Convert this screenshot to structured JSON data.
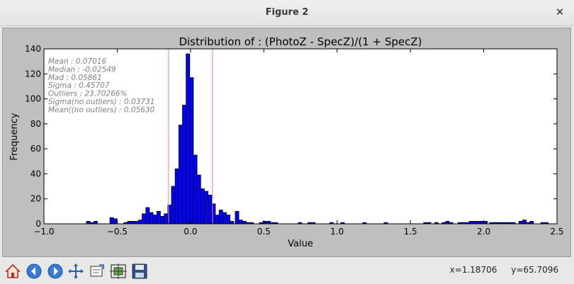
{
  "window": {
    "title": "Figure 2",
    "close_icon": "close-icon"
  },
  "toolbar": {
    "buttons": [
      {
        "name": "home-button",
        "icon": "home-icon"
      },
      {
        "name": "back-button",
        "icon": "back-arrow-icon"
      },
      {
        "name": "forward-button",
        "icon": "forward-arrow-icon"
      },
      {
        "name": "pan-button",
        "icon": "pan-move-icon"
      },
      {
        "name": "zoom-button",
        "icon": "zoom-rectangle-icon"
      },
      {
        "name": "subplots-button",
        "icon": "configure-subplots-icon"
      },
      {
        "name": "save-button",
        "icon": "save-disk-icon"
      }
    ]
  },
  "status": {
    "x": "x=1.18706",
    "y": "y=65.7096"
  },
  "chart_data": {
    "type": "bar",
    "title": "Distribution of : (PhotoZ - SpecZ)/(1 + SpecZ)",
    "xlabel": "Value",
    "ylabel": "Frequency",
    "xlim": [
      -1.0,
      2.5
    ],
    "ylim": [
      0,
      140
    ],
    "xticks": [
      "−1.0",
      "−0.5",
      "0.0",
      "0.5",
      "1.0",
      "1.5",
      "2.0",
      "2.5"
    ],
    "xtick_values": [
      -1.0,
      -0.5,
      0.0,
      0.5,
      1.0,
      1.5,
      2.0,
      2.5
    ],
    "yticks": [
      "0",
      "20",
      "40",
      "60",
      "80",
      "100",
      "120",
      "140"
    ],
    "ytick_values": [
      0,
      20,
      40,
      60,
      80,
      100,
      120,
      140
    ],
    "bar_color": "#0000ff",
    "vline_color": "#f08080",
    "vlines": [
      -0.15,
      0.15
    ],
    "bin_width": 0.0245,
    "bins": [
      [
        -0.71,
        2
      ],
      [
        -0.685,
        1
      ],
      [
        -0.66,
        2
      ],
      [
        -0.55,
        5
      ],
      [
        -0.525,
        4
      ],
      [
        -0.455,
        1
      ],
      [
        -0.43,
        2
      ],
      [
        -0.405,
        2
      ],
      [
        -0.38,
        2
      ],
      [
        -0.355,
        3
      ],
      [
        -0.33,
        8
      ],
      [
        -0.305,
        13
      ],
      [
        -0.28,
        9
      ],
      [
        -0.255,
        7
      ],
      [
        -0.23,
        10
      ],
      [
        -0.205,
        6
      ],
      [
        -0.18,
        8
      ],
      [
        -0.155,
        15
      ],
      [
        -0.13,
        30
      ],
      [
        -0.105,
        44
      ],
      [
        -0.08,
        79
      ],
      [
        -0.055,
        95
      ],
      [
        -0.03,
        136
      ],
      [
        -0.005,
        117
      ],
      [
        0.02,
        55
      ],
      [
        0.045,
        39
      ],
      [
        0.07,
        28
      ],
      [
        0.095,
        26
      ],
      [
        0.12,
        23
      ],
      [
        0.145,
        16
      ],
      [
        0.17,
        7
      ],
      [
        0.195,
        11
      ],
      [
        0.22,
        9
      ],
      [
        0.245,
        7
      ],
      [
        0.27,
        2
      ],
      [
        0.305,
        10
      ],
      [
        0.33,
        3
      ],
      [
        0.355,
        2
      ],
      [
        0.38,
        1
      ],
      [
        0.405,
        1
      ],
      [
        0.47,
        1
      ],
      [
        0.495,
        2
      ],
      [
        0.52,
        2
      ],
      [
        0.545,
        1
      ],
      [
        0.57,
        1
      ],
      [
        0.735,
        1
      ],
      [
        0.8,
        1
      ],
      [
        0.825,
        1
      ],
      [
        0.95,
        1
      ],
      [
        1.025,
        1
      ],
      [
        1.175,
        1
      ],
      [
        1.32,
        1
      ],
      [
        1.59,
        1
      ],
      [
        1.615,
        1
      ],
      [
        1.665,
        1
      ],
      [
        1.715,
        1
      ],
      [
        1.74,
        2
      ],
      [
        1.765,
        1
      ],
      [
        1.825,
        1
      ],
      [
        1.85,
        1
      ],
      [
        1.875,
        1
      ],
      [
        1.9,
        2
      ],
      [
        1.925,
        2
      ],
      [
        1.95,
        2
      ],
      [
        1.975,
        2
      ],
      [
        2.0,
        2
      ],
      [
        2.04,
        1
      ],
      [
        2.065,
        1
      ],
      [
        2.09,
        1
      ],
      [
        2.115,
        1
      ],
      [
        2.14,
        1
      ],
      [
        2.165,
        1
      ],
      [
        2.19,
        1
      ],
      [
        2.24,
        2
      ],
      [
        2.265,
        3
      ],
      [
        2.29,
        1
      ],
      [
        2.315,
        2
      ],
      [
        2.39,
        1
      ],
      [
        2.415,
        1
      ]
    ],
    "annotations": [
      "Mean : 0.07016",
      "Median : -0.02549",
      "Mad : 0.05861",
      "Sigma : 0.45707",
      "Outliers : 23.70266%",
      "Sigma(no outliers) : 0.03731",
      "Mean((no outliers) : 0.05630"
    ],
    "annotation_color": "#808080"
  }
}
